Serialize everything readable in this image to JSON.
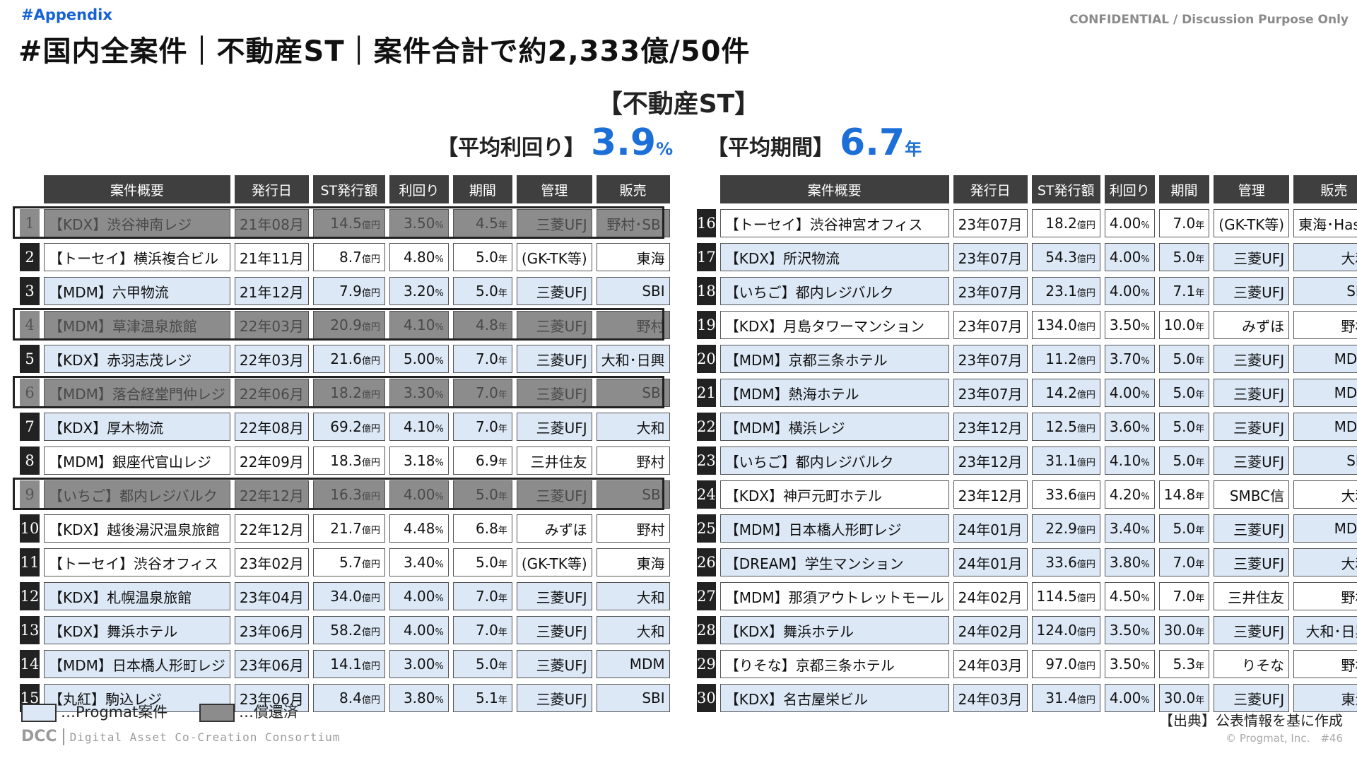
{
  "header": {
    "tag": "#Appendix",
    "confidential": "CONFIDENTIAL / Discussion Purpose Only",
    "title": "#国内全案件｜不動産ST｜案件合計で約2,333億/50件"
  },
  "summary": {
    "subtitle": "【不動産ST】",
    "yield_label": "【平均利回り】",
    "yield_value": "3.9",
    "yield_unit": "%",
    "term_label": "【平均期間】",
    "term_value": "6.7",
    "term_unit": "年"
  },
  "columns": [
    "案件概要",
    "発行日",
    "ST発行額",
    "利回り",
    "期間",
    "管理",
    "販売"
  ],
  "units": {
    "amount": "億円",
    "yield": "%",
    "term": "年"
  },
  "left_rows": [
    {
      "no": "1",
      "name": "【KDX】渋谷神南レジ",
      "year": "21年",
      "month": "08月",
      "amount": "14.5",
      "yield": "3.50",
      "term": "4.5",
      "mgr": "三菱UFJ",
      "seller": "野村･SBI",
      "status": "redeemed"
    },
    {
      "no": "2",
      "name": "【トーセイ】横浜複合ビル",
      "year": "21年",
      "month": "11月",
      "amount": "8.7",
      "yield": "4.80",
      "term": "5.0",
      "mgr": "(GK-TK等)",
      "seller": "東海",
      "status": "none"
    },
    {
      "no": "3",
      "name": "【MDM】六甲物流",
      "year": "21年",
      "month": "12月",
      "amount": "7.9",
      "yield": "3.20",
      "term": "5.0",
      "mgr": "三菱UFJ",
      "seller": "SBI",
      "status": "progmat"
    },
    {
      "no": "4",
      "name": "【MDM】草津温泉旅館",
      "year": "22年",
      "month": "03月",
      "amount": "20.9",
      "yield": "4.10",
      "term": "4.8",
      "mgr": "三菱UFJ",
      "seller": "野村",
      "status": "redeemed"
    },
    {
      "no": "5",
      "name": "【KDX】赤羽志茂レジ",
      "year": "22年",
      "month": "03月",
      "amount": "21.6",
      "yield": "5.00",
      "term": "7.0",
      "mgr": "三菱UFJ",
      "seller": "大和･日興",
      "status": "progmat"
    },
    {
      "no": "6",
      "name": "【MDM】落合経堂門仲レジ",
      "year": "22年",
      "month": "06月",
      "amount": "18.2",
      "yield": "3.30",
      "term": "7.0",
      "mgr": "三菱UFJ",
      "seller": "SBI",
      "status": "redeemed"
    },
    {
      "no": "7",
      "name": "【KDX】厚木物流",
      "year": "22年",
      "month": "08月",
      "amount": "69.2",
      "yield": "4.10",
      "term": "7.0",
      "mgr": "三菱UFJ",
      "seller": "大和",
      "status": "progmat"
    },
    {
      "no": "8",
      "name": "【MDM】銀座代官山レジ",
      "year": "22年",
      "month": "09月",
      "amount": "18.3",
      "yield": "3.18",
      "term": "6.9",
      "mgr": "三井住友",
      "seller": "野村",
      "status": "none"
    },
    {
      "no": "9",
      "name": "【いちご】都内レジバルク",
      "year": "22年",
      "month": "12月",
      "amount": "16.3",
      "yield": "4.00",
      "term": "5.0",
      "mgr": "三菱UFJ",
      "seller": "SBI",
      "status": "redeemed"
    },
    {
      "no": "10",
      "name": "【KDX】越後湯沢温泉旅館",
      "year": "22年",
      "month": "12月",
      "amount": "21.7",
      "yield": "4.48",
      "term": "6.8",
      "mgr": "みずほ",
      "seller": "野村",
      "status": "none"
    },
    {
      "no": "11",
      "name": "【トーセイ】渋谷オフィス",
      "year": "23年",
      "month": "02月",
      "amount": "5.7",
      "yield": "3.40",
      "term": "5.0",
      "mgr": "(GK-TK等)",
      "seller": "東海",
      "status": "none"
    },
    {
      "no": "12",
      "name": "【KDX】札幌温泉旅館",
      "year": "23年",
      "month": "04月",
      "amount": "34.0",
      "yield": "4.00",
      "term": "7.0",
      "mgr": "三菱UFJ",
      "seller": "大和",
      "status": "progmat"
    },
    {
      "no": "13",
      "name": "【KDX】舞浜ホテル",
      "year": "23年",
      "month": "06月",
      "amount": "58.2",
      "yield": "4.00",
      "term": "7.0",
      "mgr": "三菱UFJ",
      "seller": "大和",
      "status": "progmat"
    },
    {
      "no": "14",
      "name": "【MDM】日本橋人形町レジ",
      "year": "23年",
      "month": "06月",
      "amount": "14.1",
      "yield": "3.00",
      "term": "5.0",
      "mgr": "三菱UFJ",
      "seller": "MDM",
      "status": "progmat"
    },
    {
      "no": "15",
      "name": "【丸紅】駒込レジ",
      "year": "23年",
      "month": "06月",
      "amount": "8.4",
      "yield": "3.80",
      "term": "5.1",
      "mgr": "三菱UFJ",
      "seller": "SBI",
      "status": "progmat"
    }
  ],
  "right_rows": [
    {
      "no": "16",
      "name": "【トーセイ】渋谷神宮オフィス",
      "year": "23年",
      "month": "07月",
      "amount": "18.2",
      "yield": "4.00",
      "term": "7.0",
      "mgr": "(GK-TK等)",
      "seller": "東海･Hash",
      "status": "none"
    },
    {
      "no": "17",
      "name": "【KDX】所沢物流",
      "year": "23年",
      "month": "07月",
      "amount": "54.3",
      "yield": "4.00",
      "term": "5.0",
      "mgr": "三菱UFJ",
      "seller": "大和",
      "status": "progmat"
    },
    {
      "no": "18",
      "name": "【いちご】都内レジバルク",
      "year": "23年",
      "month": "07月",
      "amount": "23.1",
      "yield": "4.00",
      "term": "7.1",
      "mgr": "三菱UFJ",
      "seller": "SBI",
      "status": "progmat"
    },
    {
      "no": "19",
      "name": "【KDX】月島タワーマンション",
      "year": "23年",
      "month": "07月",
      "amount": "134.0",
      "yield": "3.50",
      "term": "10.0",
      "mgr": "みずほ",
      "seller": "野村",
      "status": "none"
    },
    {
      "no": "20",
      "name": "【MDM】京都三条ホテル",
      "year": "23年",
      "month": "07月",
      "amount": "11.2",
      "yield": "3.70",
      "term": "5.0",
      "mgr": "三菱UFJ",
      "seller": "MDM",
      "status": "progmat"
    },
    {
      "no": "21",
      "name": "【MDM】熱海ホテル",
      "year": "23年",
      "month": "07月",
      "amount": "14.2",
      "yield": "4.00",
      "term": "5.0",
      "mgr": "三菱UFJ",
      "seller": "MDM",
      "status": "progmat"
    },
    {
      "no": "22",
      "name": "【MDM】横浜レジ",
      "year": "23年",
      "month": "12月",
      "amount": "12.5",
      "yield": "3.60",
      "term": "5.0",
      "mgr": "三菱UFJ",
      "seller": "MDM",
      "status": "progmat"
    },
    {
      "no": "23",
      "name": "【いちご】都内レジバルク",
      "year": "23年",
      "month": "12月",
      "amount": "31.1",
      "yield": "4.10",
      "term": "5.0",
      "mgr": "三菱UFJ",
      "seller": "SBI",
      "status": "progmat"
    },
    {
      "no": "24",
      "name": "【KDX】神戸元町ホテル",
      "year": "23年",
      "month": "12月",
      "amount": "33.6",
      "yield": "4.20",
      "term": "14.8",
      "mgr": "SMBC信",
      "seller": "大和",
      "status": "none"
    },
    {
      "no": "25",
      "name": "【MDM】日本橋人形町レジ",
      "year": "24年",
      "month": "01月",
      "amount": "22.9",
      "yield": "3.40",
      "term": "5.0",
      "mgr": "三菱UFJ",
      "seller": "MDM",
      "status": "progmat"
    },
    {
      "no": "26",
      "name": "【DREAM】学生マンション",
      "year": "24年",
      "month": "01月",
      "amount": "33.6",
      "yield": "3.80",
      "term": "7.0",
      "mgr": "三菱UFJ",
      "seller": "大和",
      "status": "progmat"
    },
    {
      "no": "27",
      "name": "【MDM】那須アウトレットモール",
      "year": "24年",
      "month": "02月",
      "amount": "114.5",
      "yield": "4.50",
      "term": "7.0",
      "mgr": "三井住友",
      "seller": "野村",
      "status": "none"
    },
    {
      "no": "28",
      "name": "【KDX】舞浜ホテル",
      "year": "24年",
      "month": "02月",
      "amount": "124.0",
      "yield": "3.50",
      "term": "30.0",
      "mgr": "三菱UFJ",
      "seller": "大和･日興",
      "status": "progmat"
    },
    {
      "no": "29",
      "name": "【りそな】京都三条ホテル",
      "year": "24年",
      "month": "03月",
      "amount": "97.0",
      "yield": "3.50",
      "term": "5.3",
      "mgr": "りそな",
      "seller": "野村",
      "status": "none"
    },
    {
      "no": "30",
      "name": "【KDX】名古屋栄ビル",
      "year": "24年",
      "month": "03月",
      "amount": "31.4",
      "yield": "4.00",
      "term": "30.0",
      "mgr": "三菱UFJ",
      "seller": "東海",
      "status": "progmat"
    }
  ],
  "legend": {
    "progmat": "…Progmat案件",
    "redeemed": "…償還済"
  },
  "footer": {
    "logo": "DCC",
    "logo_long": "Digital Asset Co-Creation Consortium",
    "source": "【出典】公表情報を基に作成",
    "copyright": "© Progmat, Inc.　#46"
  }
}
